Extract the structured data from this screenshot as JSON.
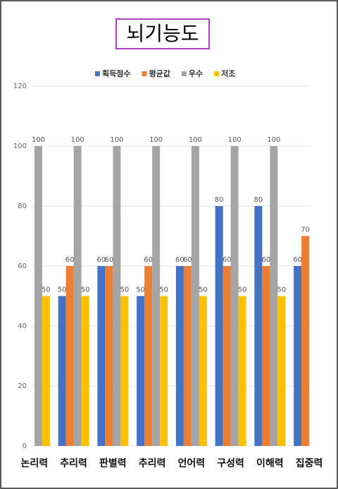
{
  "chart_data": {
    "type": "bar",
    "title": "뇌기능도",
    "categories": [
      "논리력",
      "추리력",
      "판별력",
      "추리력",
      "언어력",
      "구성력",
      "이해력",
      "집중력"
    ],
    "series": [
      {
        "name": "획득점수",
        "color": "#4472c4",
        "values": [
          null,
          50,
          60,
          50,
          60,
          80,
          80,
          60
        ]
      },
      {
        "name": "평균값",
        "color": "#ed7d31",
        "values": [
          null,
          60,
          60,
          60,
          60,
          60,
          60,
          70
        ]
      },
      {
        "name": "우수",
        "color": "#a5a5a5",
        "values": [
          100,
          100,
          100,
          100,
          100,
          100,
          100,
          null
        ]
      },
      {
        "name": "저조",
        "color": "#ffc000",
        "values": [
          50,
          50,
          50,
          50,
          50,
          50,
          50,
          null
        ]
      }
    ],
    "ylim": [
      0,
      120
    ],
    "yticks": [
      0,
      20,
      40,
      60,
      80,
      100,
      120
    ],
    "grid": true,
    "legend": "top"
  }
}
